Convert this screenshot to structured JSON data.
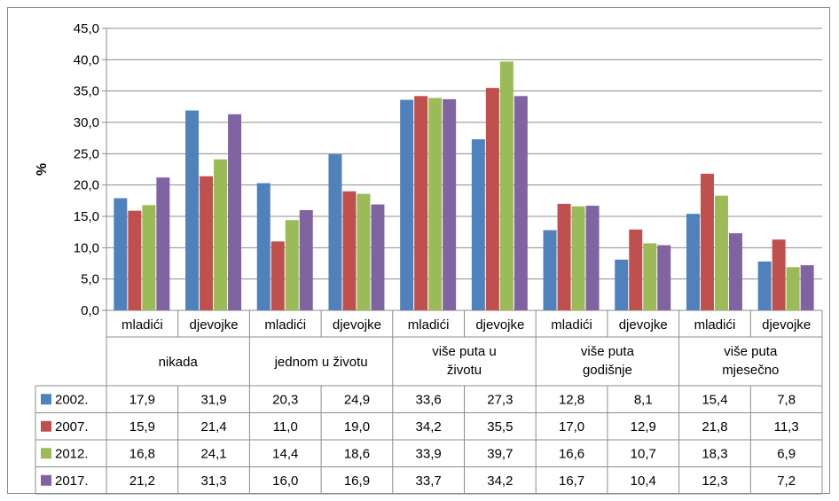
{
  "chart_data": {
    "type": "bar",
    "ylabel": "%",
    "ylim": [
      0,
      45
    ],
    "yticks": [
      "0,0",
      "5,0",
      "10,0",
      "15,0",
      "20,0",
      "25,0",
      "30,0",
      "35,0",
      "40,0",
      "45,0"
    ],
    "grid": true,
    "legend": "data-table",
    "groups": [
      "nikada",
      "jednom u životu",
      "više puta u životu",
      "više puta godišnje",
      "više puta mjesečno"
    ],
    "group_lines": [
      [
        "nikada"
      ],
      [
        "jednom u životu"
      ],
      [
        "više puta u",
        "životu"
      ],
      [
        "više puta",
        "godišnje"
      ],
      [
        "više puta",
        "mjesečno"
      ]
    ],
    "subcategories": [
      "mladići",
      "djevojke",
      "mladići",
      "djevojke",
      "mladići",
      "djevojke",
      "mladići",
      "djevojke",
      "mladići",
      "djevojke"
    ],
    "series": [
      {
        "name": "2002.",
        "color": "#4f81bd",
        "values": [
          17.9,
          31.9,
          20.3,
          24.9,
          33.6,
          27.3,
          12.8,
          8.1,
          15.4,
          7.8
        ],
        "labels": [
          "17,9",
          "31,9",
          "20,3",
          "24,9",
          "33,6",
          "27,3",
          "12,8",
          "8,1",
          "15,4",
          "7,8"
        ]
      },
      {
        "name": "2007.",
        "color": "#c0504d",
        "values": [
          15.9,
          21.4,
          11.0,
          19.0,
          34.2,
          35.5,
          17.0,
          12.9,
          21.8,
          11.3
        ],
        "labels": [
          "15,9",
          "21,4",
          "11,0",
          "19,0",
          "34,2",
          "35,5",
          "17,0",
          "12,9",
          "21,8",
          "11,3"
        ]
      },
      {
        "name": "2012.",
        "color": "#9bbb59",
        "values": [
          16.8,
          24.1,
          14.4,
          18.6,
          33.9,
          39.7,
          16.6,
          10.7,
          18.3,
          6.9
        ],
        "labels": [
          "16,8",
          "24,1",
          "14,4",
          "18,6",
          "33,9",
          "39,7",
          "16,6",
          "10,7",
          "18,3",
          "6,9"
        ]
      },
      {
        "name": "2017.",
        "color": "#8064a2",
        "values": [
          21.2,
          31.3,
          16.0,
          16.9,
          33.7,
          34.2,
          16.7,
          10.4,
          12.3,
          7.2
        ],
        "labels": [
          "21,2",
          "31,3",
          "16,0",
          "16,9",
          "33,7",
          "34,2",
          "16,7",
          "10,4",
          "12,3",
          "7,2"
        ]
      }
    ]
  }
}
